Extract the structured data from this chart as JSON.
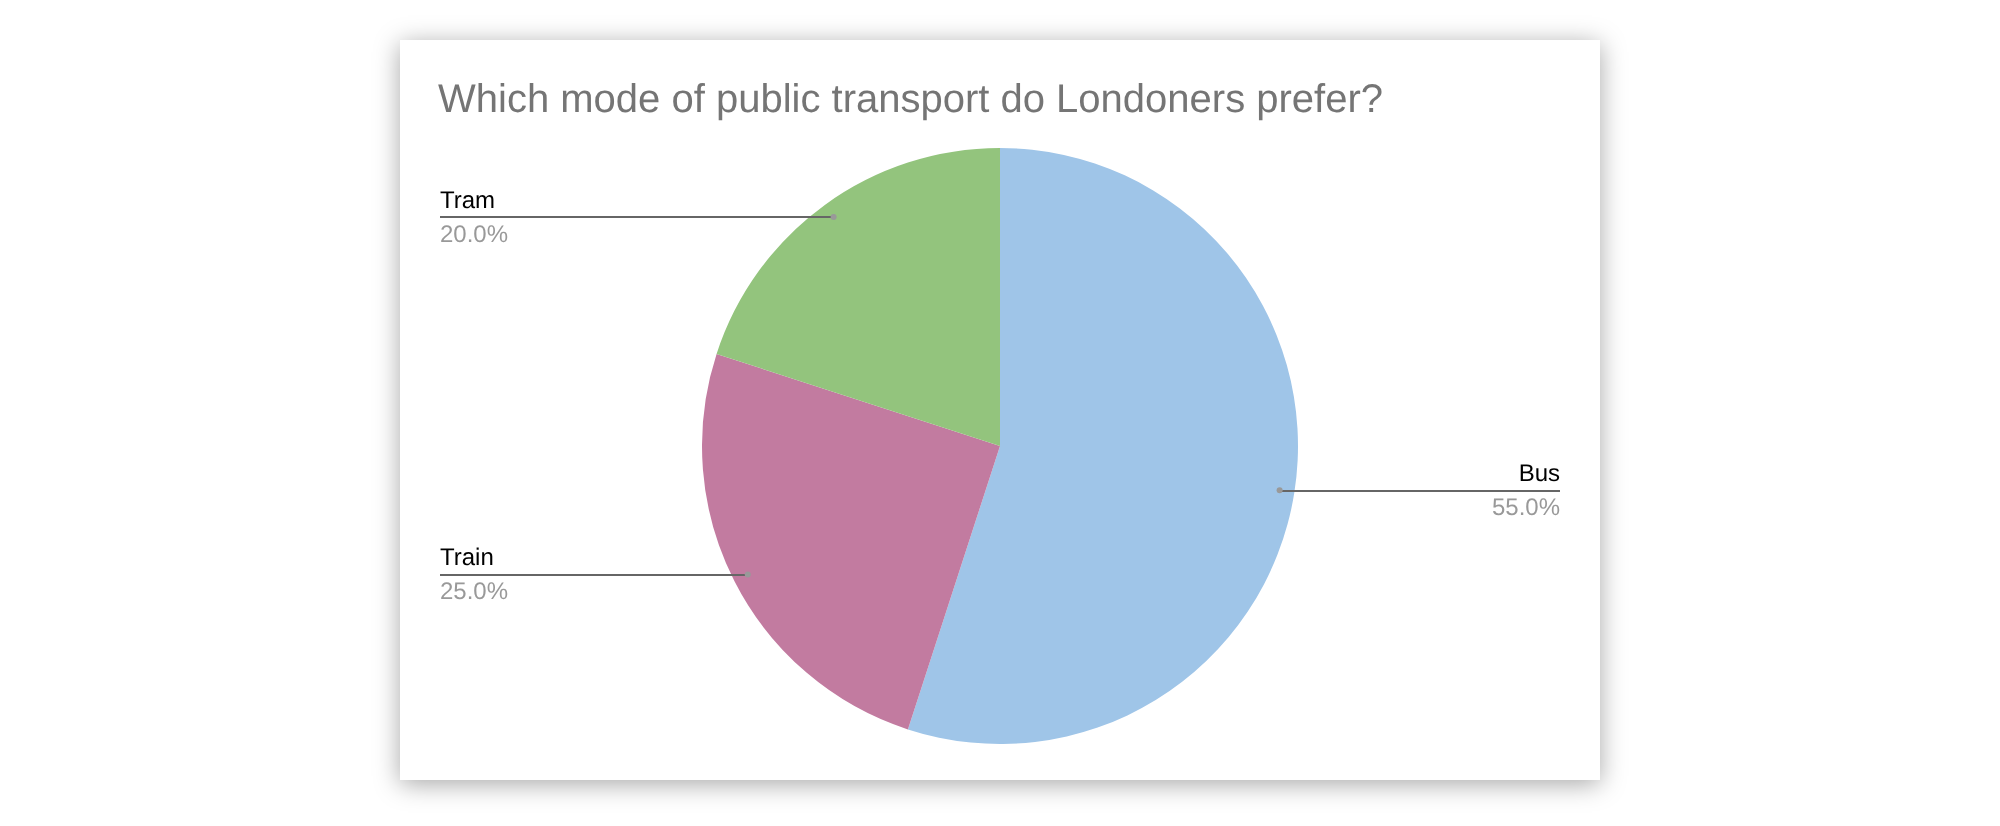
{
  "chart_data": {
    "type": "pie",
    "title": "Which mode of public transport do Londoners prefer?",
    "categories": [
      "Bus",
      "Train",
      "Tram"
    ],
    "values": [
      55,
      25,
      20
    ],
    "colors": [
      "#9fc5e8",
      "#c27ba0",
      "#93c47d"
    ],
    "value_labels": [
      "55.0%",
      "25.0%",
      "20.0%"
    ],
    "legend": false
  }
}
